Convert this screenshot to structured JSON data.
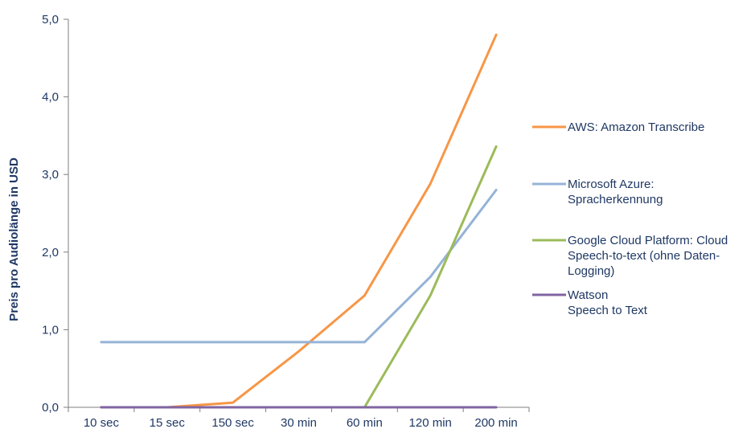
{
  "chart_data": {
    "type": "line",
    "title": "",
    "xlabel": "",
    "ylabel": "Preis pro Audiolänge in USD",
    "categories": [
      "10 sec",
      "15 sec",
      "150 sec",
      "30 min",
      "60 min",
      "120 min",
      "200 min"
    ],
    "ylim": [
      0,
      5
    ],
    "yticks": [
      0,
      1,
      2,
      3,
      4,
      5
    ],
    "ytick_labels": [
      "0,0",
      "1,0",
      "2,0",
      "3,0",
      "4,0",
      "5,0"
    ],
    "grid": false,
    "legend_position": "right",
    "series": [
      {
        "name": "AWS: Amazon Transcribe",
        "legend_lines": [
          "AWS: Amazon Transcribe"
        ],
        "color": "#f79646",
        "values": [
          0.0,
          0.0,
          0.06,
          0.72,
          1.44,
          2.88,
          4.8
        ]
      },
      {
        "name": "Microsoft Azure: Spracherkennung",
        "legend_lines": [
          "Microsoft Azure:",
          "Spracherkennung"
        ],
        "color": "#95b3d7",
        "values": [
          0.84,
          0.84,
          0.84,
          0.84,
          0.84,
          1.68,
          2.8
        ]
      },
      {
        "name": "Google Cloud Platform: Cloud Speech-to-text (ohne Daten-Logging)",
        "legend_lines": [
          "Google Cloud Platform: Cloud",
          "Speech-to-text (ohne Daten-",
          "Logging)"
        ],
        "color": "#9bbb59",
        "values": [
          null,
          null,
          null,
          null,
          0.0,
          1.44,
          3.36
        ]
      },
      {
        "name": "Watson Speech to Text",
        "legend_lines": [
          "Watson",
          "Speech to Text"
        ],
        "color": "#8064a2",
        "values": [
          0.0,
          0.0,
          0.0,
          0.0,
          0.0,
          0.0,
          0.0
        ]
      }
    ]
  }
}
